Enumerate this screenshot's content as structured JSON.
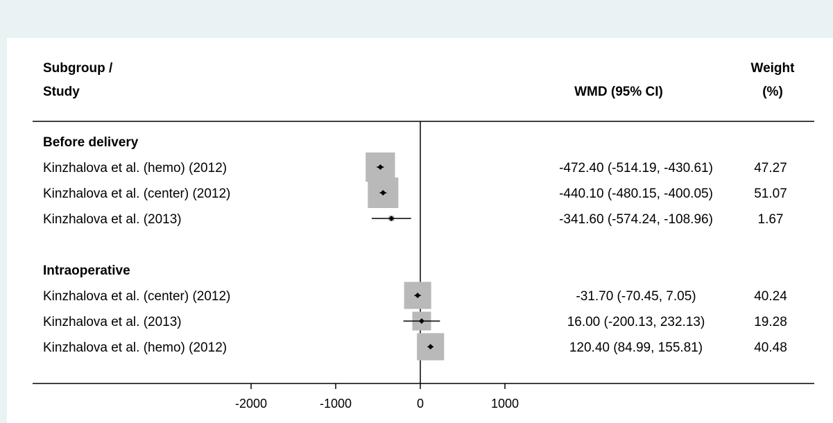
{
  "header": {
    "col1_line1": "Subgroup /",
    "col1_line2": "Study",
    "col_est": "WMD (95% CI)",
    "col_weight_line1": "Weight",
    "col_weight_line2": "(%)"
  },
  "chart_data": {
    "type": "forest",
    "xlim": [
      -2000,
      1000
    ],
    "x_ticks": [
      "-2000",
      "-1000",
      "0",
      "1000"
    ],
    "x_tick_values": [
      -2000,
      -1000,
      0,
      1000
    ],
    "reference_line": 0,
    "groups": [
      {
        "name": "Before delivery",
        "studies": [
          {
            "label": "Kinzhalova et al. (hemo) (2012)",
            "wmd": -472.4,
            "lo": -514.19,
            "hi": -430.61,
            "ci_text": "-472.40 (-514.19, -430.61)",
            "weight": 47.27,
            "weight_text": "47.27"
          },
          {
            "label": "Kinzhalova et al. (center) (2012)",
            "wmd": -440.1,
            "lo": -480.15,
            "hi": -400.05,
            "ci_text": "-440.10 (-480.15, -400.05)",
            "weight": 51.07,
            "weight_text": "51.07"
          },
          {
            "label": "Kinzhalova et al. (2013)",
            "wmd": -341.6,
            "lo": -574.24,
            "hi": -108.96,
            "ci_text": "-341.60 (-574.24, -108.96)",
            "weight": 1.67,
            "weight_text": "1.67"
          }
        ]
      },
      {
        "name": "Intraoperative",
        "studies": [
          {
            "label": "Kinzhalova et al. (center) (2012)",
            "wmd": -31.7,
            "lo": -70.45,
            "hi": 7.05,
            "ci_text": "-31.70 (-70.45, 7.05)",
            "weight": 40.24,
            "weight_text": "40.24"
          },
          {
            "label": "Kinzhalova et al. (2013)",
            "wmd": 16.0,
            "lo": -200.13,
            "hi": 232.13,
            "ci_text": "16.00 (-200.13, 232.13)",
            "weight": 19.28,
            "weight_text": "19.28"
          },
          {
            "label": "Kinzhalova et al. (hemo) (2012)",
            "wmd": 120.4,
            "lo": 84.99,
            "hi": 155.81,
            "ci_text": "120.40 (84.99, 155.81)",
            "weight": 40.48,
            "weight_text": "40.48"
          }
        ]
      }
    ],
    "colors": {
      "background": "#eaf2f3",
      "panel": "#ffffff",
      "box": "#b9b9b9",
      "point": "#000000",
      "line": "#000000"
    }
  }
}
